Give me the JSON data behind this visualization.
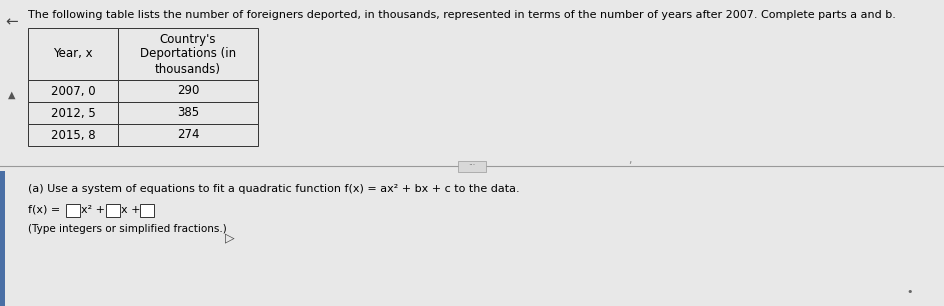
{
  "title": "The following table lists the number of foreigners deported, in thousands, represented in terms of the number of years after 2007. Complete parts a and b.",
  "col1_header": "Year, x",
  "col2_header": "Country's\nDeportations (in\nthousands)",
  "table_rows": [
    [
      "2007, 0",
      "290"
    ],
    [
      "2012, 5",
      "385"
    ],
    [
      "2015, 8",
      "274"
    ]
  ],
  "part_a_text": "(a) Use a system of equations to fit a quadratic function f(x) = ax² + bx + c to the data.",
  "note_text": "(Type integers or simplified fractions.)",
  "bg_color": "#e8e8e8",
  "cell_bg": "#e8e8e8",
  "text_color": "#000000",
  "font_size_title": 8.0,
  "font_size_table": 8.5,
  "font_size_body": 8.0,
  "left_arrow": "←",
  "up_arrow": "▲"
}
